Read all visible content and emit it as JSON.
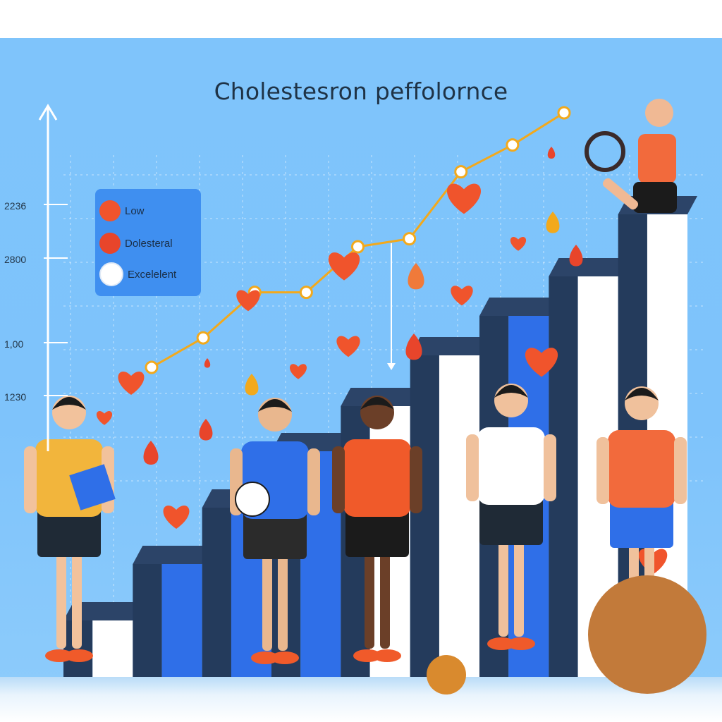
{
  "chart_data": {
    "type": "line",
    "title": "Cholestesron peffolornce",
    "xlabel": "",
    "ylabel": "",
    "y_tick_labels": [
      "2236",
      "2800",
      "1,00",
      "1230"
    ],
    "legend": {
      "placement": "top-left",
      "entries": [
        {
          "label": "Low",
          "color": "#f0542c"
        },
        {
          "label": "Dolesteral",
          "color": "#e8452b"
        },
        {
          "label": "Excelelent",
          "color": "#ffffff"
        }
      ]
    },
    "grid": true,
    "ylim": [
      0,
      100
    ],
    "series": [
      {
        "color": "#f2a91c",
        "x": [
          1,
          2,
          3,
          4,
          5,
          6,
          7,
          8,
          9
        ],
        "values": [
          5,
          16,
          33,
          33,
          50,
          53,
          78,
          88,
          100
        ]
      }
    ],
    "bars": {
      "values": [
        10,
        20,
        30,
        40,
        48,
        57,
        64,
        71,
        82
      ],
      "colors": [
        "#ffffff",
        "#2f6fe8",
        "#2f6fe8",
        "#2f6fe8",
        "#ffffff",
        "#ffffff",
        "#2f6fe8",
        "#ffffff",
        "#ffffff"
      ]
    }
  },
  "colors": {
    "panel": "#7fc4fb",
    "bar_shadow": "#243b5c",
    "line": "#f2a91c",
    "heart": "#f0542c",
    "grid": "#ffffff"
  },
  "figures": [
    {
      "name": "coach-with-clipboard",
      "shirt": "#f2b53c",
      "skin": "#f2c29c"
    },
    {
      "name": "player-with-soccer-ball",
      "shirt": "#2f6fe8",
      "skin": "#e9b78e"
    },
    {
      "name": "runner",
      "shirt": "#f05a2a",
      "skin": "#6b3f28"
    },
    {
      "name": "player-white-shirt",
      "shirt": "#ffffff",
      "skin": "#f0c19c"
    },
    {
      "name": "player-orange-shirt",
      "shirt": "#f26a3c",
      "skin": "#f0c19c"
    },
    {
      "name": "woman-on-top-bar",
      "shirt": "#f26a3c",
      "skin": "#f0b994"
    }
  ]
}
